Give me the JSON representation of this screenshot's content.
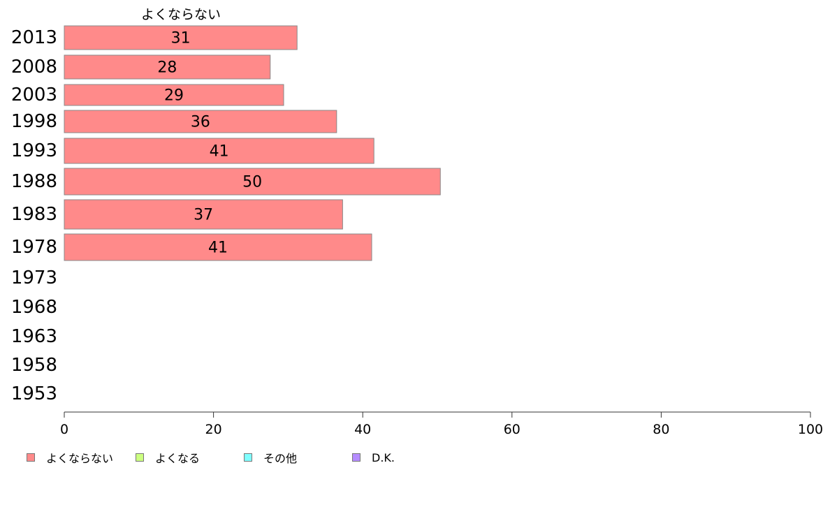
{
  "chart_data": {
    "type": "bar",
    "orientation": "horizontal",
    "stacked": true,
    "series_header": "よくならない",
    "categories": [
      "2013",
      "2008",
      "2003",
      "1998",
      "1993",
      "1988",
      "1983",
      "1978",
      "1973",
      "1968",
      "1963",
      "1958",
      "1953"
    ],
    "series": [
      {
        "name": "よくならない",
        "color": "#ff8a8a",
        "values": [
          31,
          28,
          29,
          36,
          41,
          50,
          37,
          41,
          null,
          null,
          null,
          null,
          null
        ]
      },
      {
        "name": "よくなる",
        "color": "#ccff80",
        "values": [
          null,
          null,
          null,
          null,
          null,
          null,
          null,
          null,
          null,
          null,
          null,
          null,
          null
        ]
      },
      {
        "name": "その他",
        "color": "#80ffff",
        "values": [
          null,
          null,
          null,
          null,
          null,
          null,
          null,
          null,
          null,
          null,
          null,
          null,
          null
        ]
      },
      {
        "name": "D.K.",
        "color": "#b58cff",
        "values": [
          null,
          null,
          null,
          null,
          null,
          null,
          null,
          null,
          null,
          null,
          null,
          null,
          null
        ]
      }
    ],
    "bar_display": [
      31.2,
      27.6,
      29.4,
      36.5,
      41.5,
      50.4,
      37.3,
      41.2
    ],
    "xlim": [
      0,
      100
    ],
    "xticks": [
      0,
      20,
      40,
      60,
      80,
      100
    ],
    "grid": false,
    "legend_position": "bottom"
  }
}
